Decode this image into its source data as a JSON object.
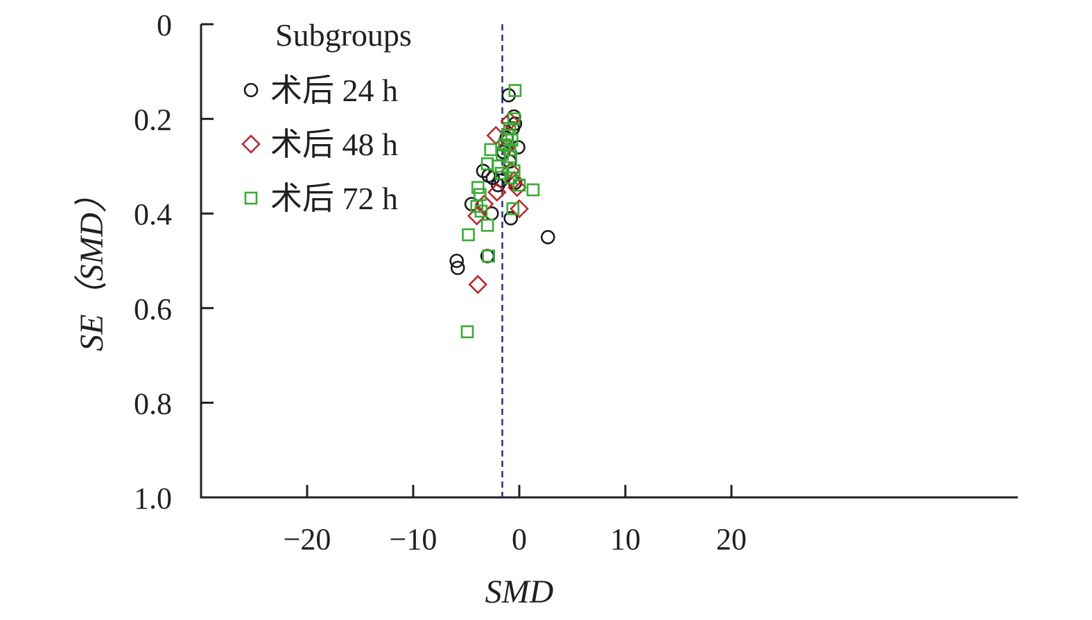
{
  "chart_data": {
    "type": "scatter",
    "title": "",
    "xlabel": "SMD",
    "ylabel": "SE（SMD）",
    "xlim": [
      -30,
      47
    ],
    "ylim": [
      1.0,
      0
    ],
    "x_ticks": [
      -20,
      -10,
      0,
      10,
      20
    ],
    "x_tick_labels": [
      "−20",
      "−10",
      "0",
      "10",
      "20"
    ],
    "y_ticks": [
      0,
      0.2,
      0.4,
      0.6,
      0.8,
      1.0
    ],
    "y_tick_labels": [
      "0",
      "0.2",
      "0.4",
      "0.6",
      "0.8",
      "1.0"
    ],
    "reference_line": {
      "x": -1.6,
      "style": "dashed",
      "color": "#1f2f8f"
    },
    "grid": false,
    "legend": {
      "title": "Subgroups",
      "placement": "top-left"
    },
    "series": [
      {
        "name": "术后 24 h",
        "marker": "circle",
        "color": "#1a1a1a",
        "points": [
          {
            "x": -1.0,
            "y": 0.15
          },
          {
            "x": -0.5,
            "y": 0.195
          },
          {
            "x": -0.4,
            "y": 0.21
          },
          {
            "x": -0.6,
            "y": 0.22
          },
          {
            "x": -1.2,
            "y": 0.24
          },
          {
            "x": -0.1,
            "y": 0.26
          },
          {
            "x": -1.5,
            "y": 0.27
          },
          {
            "x": -0.9,
            "y": 0.29
          },
          {
            "x": -3.4,
            "y": 0.31
          },
          {
            "x": -2.9,
            "y": 0.32
          },
          {
            "x": -2.5,
            "y": 0.325
          },
          {
            "x": -1.7,
            "y": 0.33
          },
          {
            "x": -0.4,
            "y": 0.335
          },
          {
            "x": -2.0,
            "y": 0.34
          },
          {
            "x": -4.5,
            "y": 0.38
          },
          {
            "x": -2.6,
            "y": 0.4
          },
          {
            "x": -0.8,
            "y": 0.41
          },
          {
            "x": 2.7,
            "y": 0.45
          },
          {
            "x": -5.9,
            "y": 0.5
          },
          {
            "x": -5.8,
            "y": 0.515
          },
          {
            "x": -3.0,
            "y": 0.49
          }
        ]
      },
      {
        "name": "术后 48 h",
        "marker": "diamond",
        "color": "#b22a2e",
        "points": [
          {
            "x": -0.9,
            "y": 0.205
          },
          {
            "x": -2.2,
            "y": 0.235
          },
          {
            "x": -1.2,
            "y": 0.26
          },
          {
            "x": -0.8,
            "y": 0.31
          },
          {
            "x": -0.5,
            "y": 0.33
          },
          {
            "x": -0.2,
            "y": 0.345
          },
          {
            "x": -2.1,
            "y": 0.355
          },
          {
            "x": -3.3,
            "y": 0.38
          },
          {
            "x": 0.0,
            "y": 0.39
          },
          {
            "x": -4.0,
            "y": 0.405
          },
          {
            "x": -3.9,
            "y": 0.55
          }
        ]
      },
      {
        "name": "术后 72 h",
        "marker": "square",
        "color": "#3aaa35",
        "points": [
          {
            "x": -0.4,
            "y": 0.14
          },
          {
            "x": -0.5,
            "y": 0.2
          },
          {
            "x": -0.9,
            "y": 0.22
          },
          {
            "x": -1.1,
            "y": 0.235
          },
          {
            "x": -0.7,
            "y": 0.245
          },
          {
            "x": -1.4,
            "y": 0.255
          },
          {
            "x": -0.9,
            "y": 0.265
          },
          {
            "x": -2.7,
            "y": 0.265
          },
          {
            "x": -1.6,
            "y": 0.275
          },
          {
            "x": -0.8,
            "y": 0.28
          },
          {
            "x": -3.0,
            "y": 0.295
          },
          {
            "x": -2.0,
            "y": 0.3
          },
          {
            "x": -0.5,
            "y": 0.31
          },
          {
            "x": -0.8,
            "y": 0.325
          },
          {
            "x": -1.7,
            "y": 0.315
          },
          {
            "x": 0.0,
            "y": 0.34
          },
          {
            "x": 1.3,
            "y": 0.35
          },
          {
            "x": -3.9,
            "y": 0.345
          },
          {
            "x": -3.7,
            "y": 0.36
          },
          {
            "x": -4.0,
            "y": 0.385
          },
          {
            "x": -3.6,
            "y": 0.395
          },
          {
            "x": -0.6,
            "y": 0.39
          },
          {
            "x": -3.0,
            "y": 0.425
          },
          {
            "x": -4.8,
            "y": 0.445
          },
          {
            "x": -2.9,
            "y": 0.49
          },
          {
            "x": -4.9,
            "y": 0.65
          }
        ]
      }
    ]
  }
}
